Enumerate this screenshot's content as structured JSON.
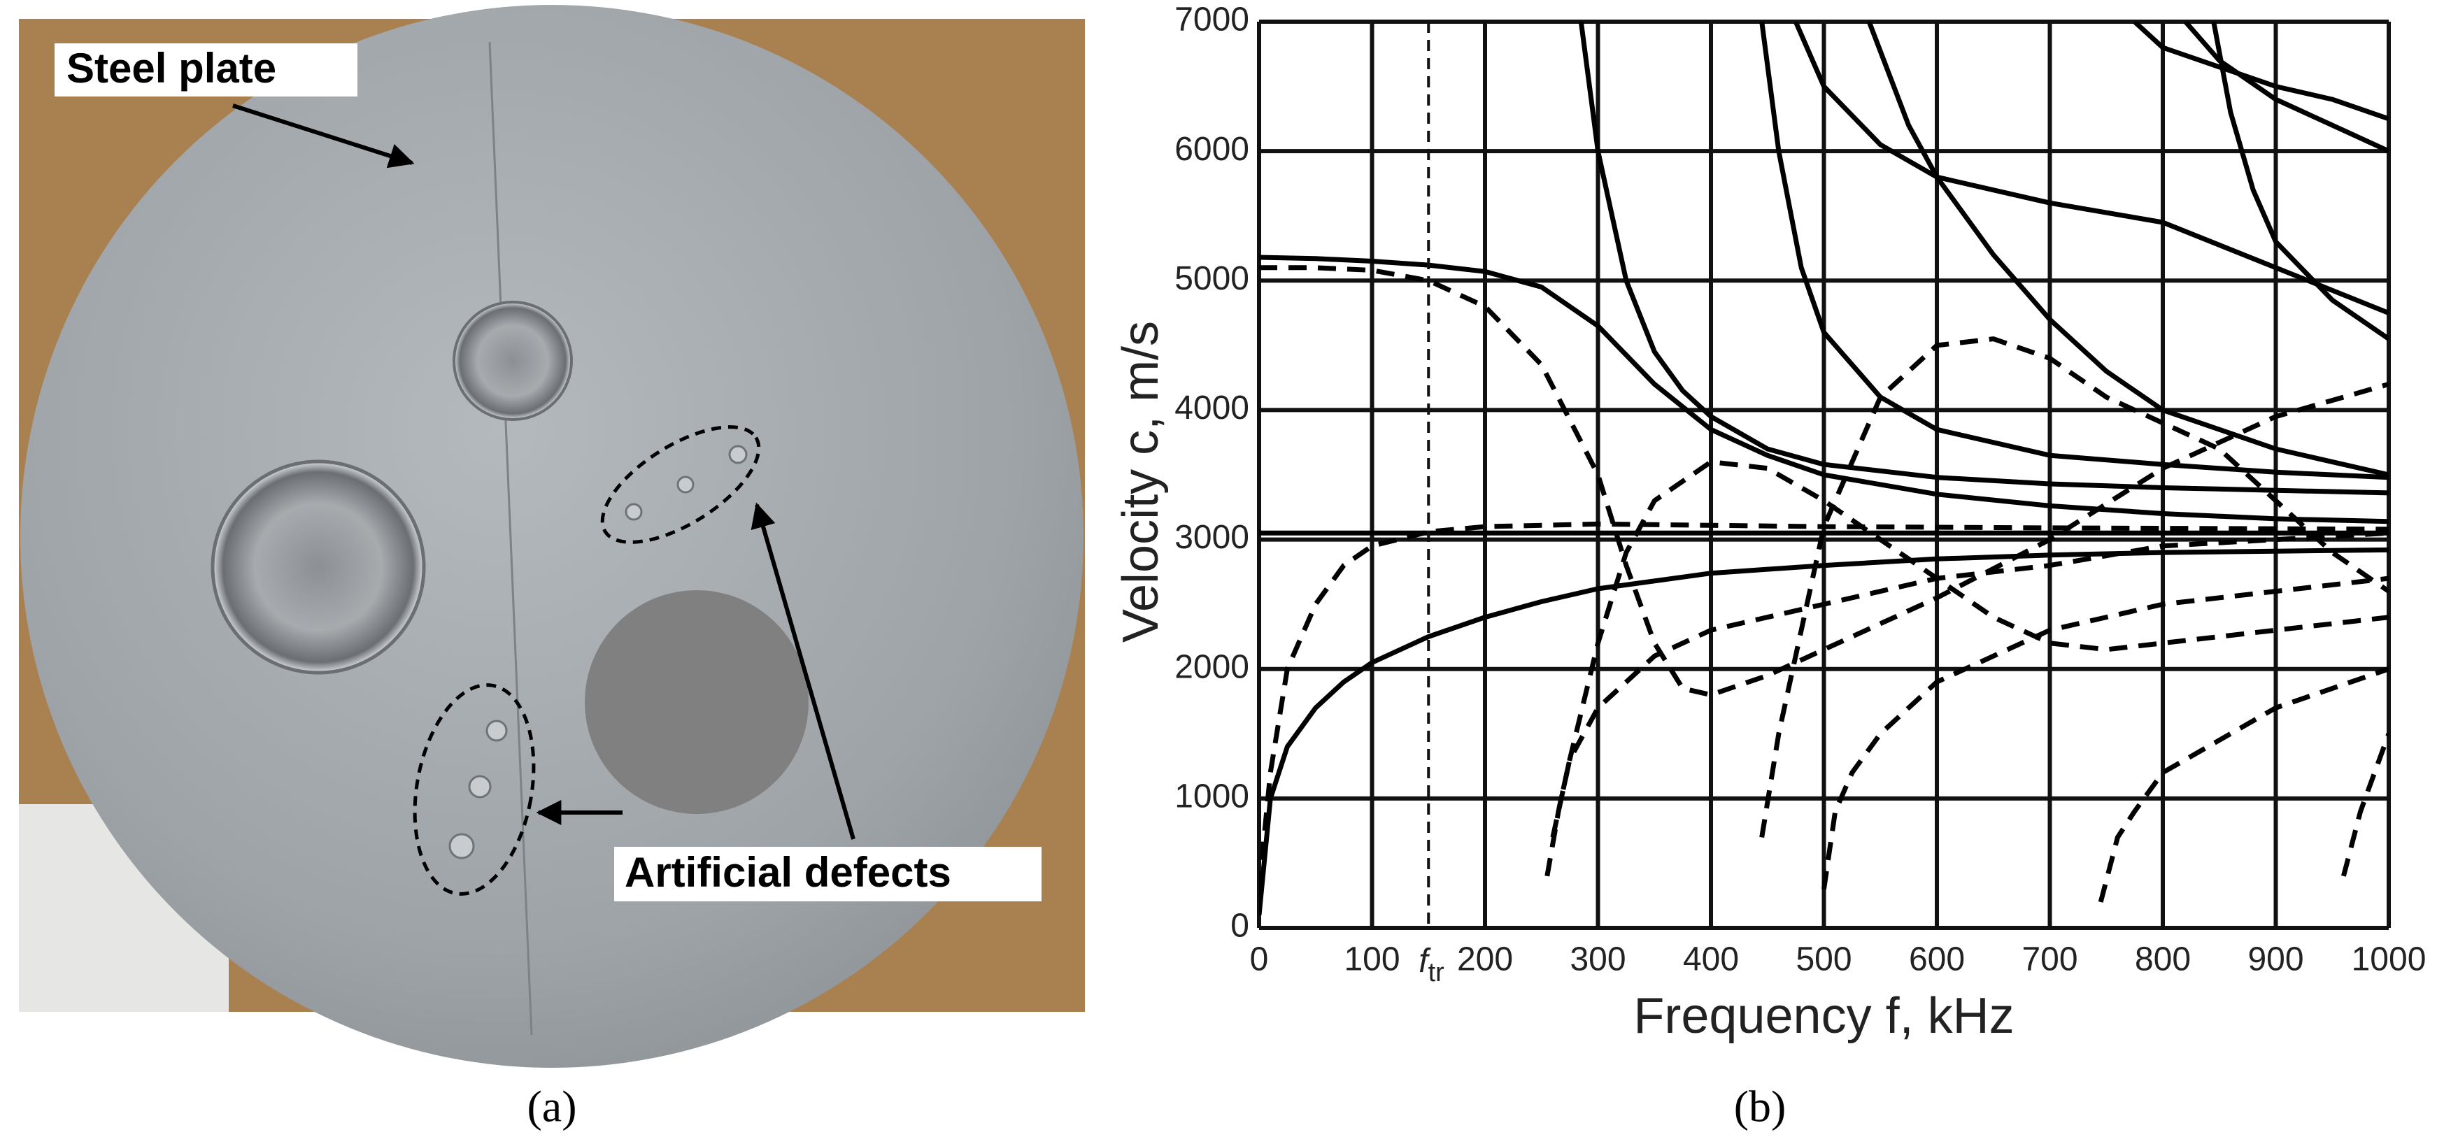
{
  "panel_a": {
    "plate_label": "Steel plate",
    "defects_label": "Artificial defects",
    "caption": "(a)"
  },
  "panel_b_caption": "(b)",
  "chart_data": {
    "type": "line",
    "x_label": "Frequency f, kHz",
    "y_label": "Velocity c, m/s",
    "xlim": [
      0,
      1000
    ],
    "ylim": [
      0,
      7000
    ],
    "xticks": [
      0,
      100,
      200,
      300,
      400,
      500,
      600,
      700,
      800,
      900,
      1000
    ],
    "yticks": [
      0,
      1000,
      2000,
      3000,
      4000,
      5000,
      6000,
      7000
    ],
    "grid": true,
    "annotation": {
      "label": "f",
      "subscript": "tr",
      "x": 150
    },
    "series": [
      {
        "color": "#000000",
        "dash": "solid",
        "x": [
          0,
          10,
          25,
          50,
          75,
          100,
          150,
          200,
          250,
          300,
          400,
          500,
          600,
          700,
          800,
          900,
          1000
        ],
        "values": [
          100,
          1000,
          1400,
          1700,
          1900,
          2050,
          2250,
          2400,
          2520,
          2620,
          2740,
          2800,
          2850,
          2880,
          2900,
          2910,
          2920
        ]
      },
      {
        "color": "#000000",
        "dash": "solid",
        "x": [
          0,
          50,
          100,
          150,
          200,
          250,
          300,
          350,
          400,
          450,
          500,
          600,
          700,
          800,
          900,
          1000
        ],
        "values": [
          5180,
          5170,
          5150,
          5120,
          5070,
          4950,
          4650,
          4200,
          3850,
          3650,
          3500,
          3350,
          3260,
          3200,
          3160,
          3140
        ]
      },
      {
        "color": "#000000",
        "dash": "solid",
        "x": [
          0,
          1000
        ],
        "values": [
          3050,
          3050
        ]
      },
      {
        "color": "#000000",
        "dash": "solid",
        "x": [
          285,
          300,
          325,
          350,
          375,
          400,
          450,
          500,
          600,
          700,
          800,
          900,
          1000
        ],
        "values": [
          7000,
          6000,
          5000,
          4450,
          4150,
          3950,
          3700,
          3580,
          3480,
          3430,
          3400,
          3380,
          3360
        ]
      },
      {
        "color": "#000000",
        "dash": "solid",
        "x": [
          445,
          460,
          480,
          500,
          550,
          600,
          700,
          800,
          900,
          1000
        ],
        "values": [
          7000,
          6000,
          5100,
          4600,
          4100,
          3850,
          3650,
          3580,
          3520,
          3480
        ]
      },
      {
        "color": "#000000",
        "dash": "solid",
        "x": [
          475,
          500,
          550,
          600,
          700,
          800,
          900,
          1000
        ],
        "values": [
          7000,
          6500,
          6050,
          5800,
          5600,
          5450,
          5100,
          4750
        ]
      },
      {
        "color": "#000000",
        "dash": "solid",
        "x": [
          540,
          575,
          600,
          650,
          700,
          750,
          800,
          900,
          1000
        ],
        "values": [
          7000,
          6200,
          5800,
          5200,
          4700,
          4300,
          4000,
          3700,
          3500
        ]
      },
      {
        "color": "#000000",
        "dash": "solid",
        "x": [
          775,
          800,
          850,
          900,
          950,
          1000
        ],
        "values": [
          7000,
          6800,
          6650,
          6500,
          6400,
          6250
        ]
      },
      {
        "color": "#000000",
        "dash": "solid",
        "x": [
          820,
          850,
          900,
          950,
          1000
        ],
        "values": [
          7000,
          6700,
          6400,
          6200,
          6000
        ]
      },
      {
        "color": "#000000",
        "dash": "solid",
        "x": [
          845,
          860,
          880,
          900,
          950,
          1000
        ],
        "values": [
          7000,
          6300,
          5700,
          5300,
          4850,
          4550
        ]
      },
      {
        "color": "#000000",
        "dash": "dashed",
        "x": [
          0,
          50,
          100,
          150,
          200,
          250,
          300,
          325,
          350,
          375,
          400,
          450,
          500,
          600,
          700,
          800,
          900,
          1000
        ],
        "values": [
          5100,
          5100,
          5080,
          5000,
          4800,
          4350,
          3500,
          2800,
          2200,
          1850,
          1800,
          1950,
          2150,
          2550,
          3000,
          3550,
          3950,
          4200
        ]
      },
      {
        "color": "#000000",
        "dash": "dashed",
        "x": [
          0,
          10,
          25,
          50,
          75,
          100,
          150,
          200,
          300,
          500,
          700,
          1000
        ],
        "values": [
          300,
          1200,
          2000,
          2500,
          2800,
          2950,
          3060,
          3100,
          3120,
          3100,
          3090,
          3080
        ]
      },
      {
        "color": "#000000",
        "dash": "dashed",
        "x": [
          255,
          265,
          275,
          300,
          325,
          350,
          400,
          450,
          500,
          550,
          600,
          650,
          700,
          750,
          800,
          900,
          1000
        ],
        "values": [
          400,
          900,
          1300,
          2200,
          2900,
          3300,
          3600,
          3550,
          3300,
          3000,
          2700,
          2400,
          2200,
          2150,
          2200,
          2300,
          2400
        ]
      },
      {
        "color": "#000000",
        "dash": "dashed",
        "x": [
          260,
          275,
          300,
          350,
          400,
          500,
          600,
          700,
          800,
          900,
          1000
        ],
        "values": [
          700,
          1300,
          1700,
          2100,
          2300,
          2500,
          2700,
          2800,
          2950,
          3000,
          3050
        ]
      },
      {
        "color": "#000000",
        "dash": "dashed",
        "x": [
          445,
          460,
          475,
          500,
          550,
          600,
          650,
          700,
          750,
          800,
          850,
          900,
          950,
          1000
        ],
        "values": [
          700,
          1500,
          2100,
          3100,
          4100,
          4500,
          4550,
          4400,
          4100,
          3900,
          3700,
          3300,
          2900,
          2600
        ]
      },
      {
        "color": "#000000",
        "dash": "dashed",
        "x": [
          500,
          510,
          525,
          550,
          600,
          700,
          800,
          900,
          1000
        ],
        "values": [
          300,
          900,
          1200,
          1500,
          1900,
          2300,
          2500,
          2600,
          2700
        ]
      },
      {
        "color": "#000000",
        "dash": "dashed",
        "x": [
          745,
          760,
          775,
          800,
          850,
          900,
          1000
        ],
        "values": [
          200,
          700,
          900,
          1200,
          1450,
          1700,
          2000
        ]
      },
      {
        "color": "#000000",
        "dash": "dashed",
        "x": [
          960,
          975,
          1000
        ],
        "values": [
          400,
          900,
          1500
        ]
      }
    ]
  }
}
